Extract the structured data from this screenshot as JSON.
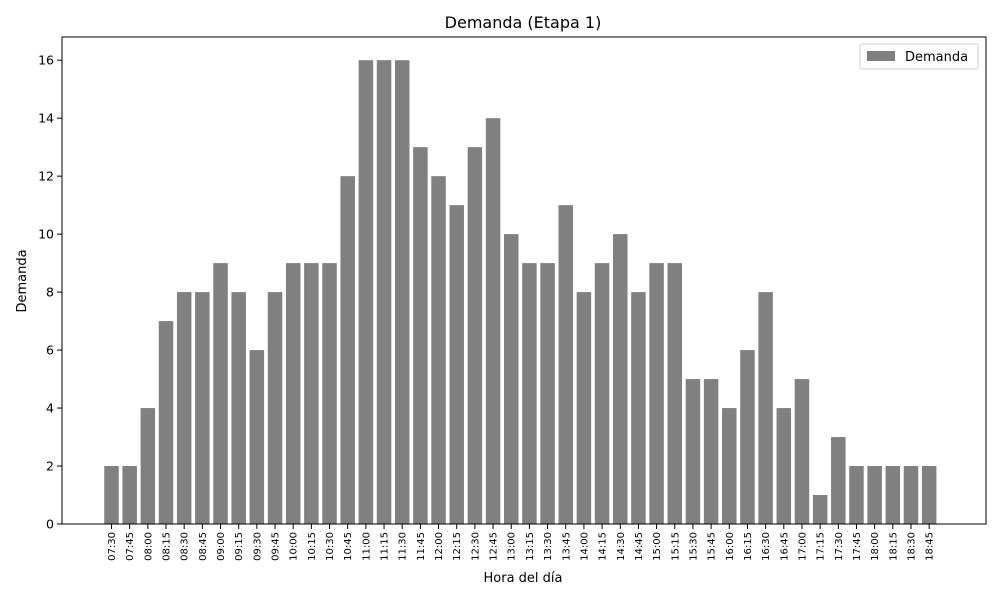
{
  "chart_data": {
    "type": "bar",
    "title": "Demanda (Etapa 1)",
    "xlabel": "Hora del día",
    "ylabel": "Demanda",
    "ylim": [
      0,
      16.8
    ],
    "yticks": [
      0,
      2,
      4,
      6,
      8,
      10,
      12,
      14,
      16
    ],
    "grid": false,
    "legend": "top-right",
    "categories": [
      "07:30",
      "07:45",
      "08:00",
      "08:15",
      "08:30",
      "08:45",
      "09:00",
      "09:15",
      "09:30",
      "09:45",
      "10:00",
      "10:15",
      "10:30",
      "10:45",
      "11:00",
      "11:15",
      "11:30",
      "11:45",
      "12:00",
      "12:15",
      "12:30",
      "12:45",
      "13:00",
      "13:15",
      "13:30",
      "13:45",
      "14:00",
      "14:15",
      "14:30",
      "14:45",
      "15:00",
      "15:15",
      "15:30",
      "15:45",
      "16:00",
      "16:15",
      "16:30",
      "16:45",
      "17:00",
      "17:15",
      "17:30",
      "17:45",
      "18:00",
      "18:15",
      "18:30",
      "18:45"
    ],
    "series": [
      {
        "name": "Demanda",
        "color": "#808080",
        "values": [
          2,
          2,
          4,
          7,
          8,
          8,
          9,
          8,
          6,
          8,
          9,
          9,
          9,
          12,
          16,
          16,
          16,
          13,
          12,
          11,
          13,
          14,
          10,
          9,
          9,
          11,
          8,
          9,
          10,
          8,
          9,
          9,
          5,
          5,
          4,
          6,
          8,
          4,
          5,
          1,
          3,
          2,
          2,
          2,
          2,
          2
        ]
      }
    ]
  }
}
